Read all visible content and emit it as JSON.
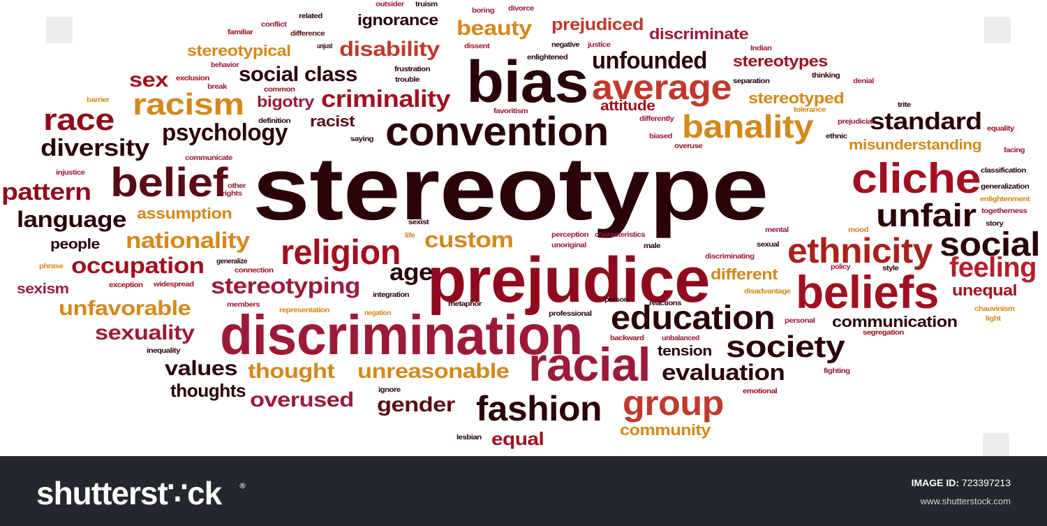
{
  "words": [
    {
      "text": "stereotype",
      "color": "#2a0208"
    },
    {
      "text": "prejudice",
      "color": "#8f0a1c"
    },
    {
      "text": "discrimination",
      "color": "#9c1a38"
    },
    {
      "text": "bias",
      "color": "#2a0208"
    },
    {
      "text": "convention",
      "color": "#2a0208"
    },
    {
      "text": "belief",
      "color": "#5a0c16"
    },
    {
      "text": "cliche",
      "color": "#a01020"
    },
    {
      "text": "beliefs",
      "color": "#a01020"
    },
    {
      "text": "racial",
      "color": "#9c1a38"
    },
    {
      "text": "education",
      "color": "#2a0208"
    },
    {
      "text": "religion",
      "color": "#a01020"
    },
    {
      "text": "ethnicity",
      "color": "#a8221c"
    },
    {
      "text": "social",
      "color": "#2a0208"
    },
    {
      "text": "average",
      "color": "#c0392b"
    },
    {
      "text": "banality",
      "color": "#d4881a"
    },
    {
      "text": "unfair",
      "color": "#2a0208"
    },
    {
      "text": "racism",
      "color": "#d4881a"
    },
    {
      "text": "race",
      "color": "#8f0a1c"
    },
    {
      "text": "society",
      "color": "#2a0208"
    },
    {
      "text": "fashion",
      "color": "#2a0208"
    },
    {
      "text": "group",
      "color": "#c0392b"
    },
    {
      "text": "feeling",
      "color": "#b51e2a"
    },
    {
      "text": "standard",
      "color": "#2a0208"
    },
    {
      "text": "unfounded",
      "color": "#2a0208"
    },
    {
      "text": "criminality",
      "color": "#a01020"
    },
    {
      "text": "psychology",
      "color": "#2a0208"
    },
    {
      "text": "diversity",
      "color": "#2a0208"
    },
    {
      "text": "pattern",
      "color": "#8f0a1c"
    },
    {
      "text": "language",
      "color": "#2a0208"
    },
    {
      "text": "nationality",
      "color": "#d4881a"
    },
    {
      "text": "occupation",
      "color": "#a01020"
    },
    {
      "text": "stereotyping",
      "color": "#9c1a38"
    },
    {
      "text": "unfavorable",
      "color": "#d4881a"
    },
    {
      "text": "sexuality",
      "color": "#9c1a38"
    },
    {
      "text": "values",
      "color": "#2a0208"
    },
    {
      "text": "thought",
      "color": "#d4881a"
    },
    {
      "text": "unreasonable",
      "color": "#d4881a"
    },
    {
      "text": "evaluation",
      "color": "#2a0208"
    },
    {
      "text": "gender",
      "color": "#5a0c16"
    },
    {
      "text": "overused",
      "color": "#9c1a38"
    },
    {
      "text": "thoughts",
      "color": "#2a0208"
    },
    {
      "text": "custom",
      "color": "#d4881a"
    },
    {
      "text": "age",
      "color": "#2a0208"
    },
    {
      "text": "sex",
      "color": "#a01020"
    },
    {
      "text": "social class",
      "color": "#2a0208"
    },
    {
      "text": "disability",
      "color": "#c0392b"
    },
    {
      "text": "beauty",
      "color": "#d4881a"
    },
    {
      "text": "prejudiced",
      "color": "#c0392b"
    },
    {
      "text": "discriminate",
      "color": "#9c1a38"
    },
    {
      "text": "stereotypes",
      "color": "#a01020"
    },
    {
      "text": "stereotypical",
      "color": "#d4881a"
    },
    {
      "text": "ignorance",
      "color": "#2a0208"
    },
    {
      "text": "bigotry",
      "color": "#9c1a38"
    },
    {
      "text": "racist",
      "color": "#5a0c16"
    },
    {
      "text": "attitude",
      "color": "#a01020"
    },
    {
      "text": "stereotyped",
      "color": "#d4881a"
    },
    {
      "text": "misunderstanding",
      "color": "#d4881a"
    },
    {
      "text": "assumption",
      "color": "#d4881a"
    },
    {
      "text": "people",
      "color": "#2a0208"
    },
    {
      "text": "sexism",
      "color": "#9c1a38"
    },
    {
      "text": "different",
      "color": "#d4881a"
    },
    {
      "text": "unequal",
      "color": "#a01020"
    },
    {
      "text": "communication",
      "color": "#2a0208"
    },
    {
      "text": "tension",
      "color": "#2a0208"
    },
    {
      "text": "community",
      "color": "#d4881a"
    },
    {
      "text": "equal",
      "color": "#a01020"
    },
    {
      "text": "outsider",
      "color": "#9c1a38"
    },
    {
      "text": "truism",
      "color": "#2a0208"
    },
    {
      "text": "boring",
      "color": "#9c1a38"
    },
    {
      "text": "divorce",
      "color": "#9c1a38"
    },
    {
      "text": "related",
      "color": "#2a0208"
    },
    {
      "text": "conflict",
      "color": "#9c1a38"
    },
    {
      "text": "familiar",
      "color": "#a01020"
    },
    {
      "text": "difference",
      "color": "#5a0c16"
    },
    {
      "text": "unjust",
      "color": "#2a0208"
    },
    {
      "text": "dissent",
      "color": "#9c1a38"
    },
    {
      "text": "negative",
      "color": "#2a0208"
    },
    {
      "text": "justice",
      "color": "#9c1a38"
    },
    {
      "text": "enlightened",
      "color": "#2a0208"
    },
    {
      "text": "Indian",
      "color": "#9c1a38"
    },
    {
      "text": "behavior",
      "color": "#9c1a38"
    },
    {
      "text": "exclusion",
      "color": "#a01020"
    },
    {
      "text": "frustration",
      "color": "#2a0208"
    },
    {
      "text": "trouble",
      "color": "#2a0208"
    },
    {
      "text": "break",
      "color": "#9c1a38"
    },
    {
      "text": "common",
      "color": "#a01020"
    },
    {
      "text": "separation",
      "color": "#2a0208"
    },
    {
      "text": "thinking",
      "color": "#2a0208"
    },
    {
      "text": "denial",
      "color": "#9c1a38"
    },
    {
      "text": "barrier",
      "color": "#d4881a"
    },
    {
      "text": "favoritism",
      "color": "#9c1a38"
    },
    {
      "text": "tolerance",
      "color": "#d4881a"
    },
    {
      "text": "trite",
      "color": "#2a0208"
    },
    {
      "text": "definition",
      "color": "#2a0208"
    },
    {
      "text": "differently",
      "color": "#9c1a38"
    },
    {
      "text": "prejudicial",
      "color": "#9c1a38"
    },
    {
      "text": "equality",
      "color": "#a01020"
    },
    {
      "text": "saying",
      "color": "#2a0208"
    },
    {
      "text": "biased",
      "color": "#9c1a38"
    },
    {
      "text": "overuse",
      "color": "#a01020"
    },
    {
      "text": "ethnic",
      "color": "#2a0208"
    },
    {
      "text": "facing",
      "color": "#9c1a38"
    },
    {
      "text": "communicate",
      "color": "#9c1a38"
    },
    {
      "text": "injustice",
      "color": "#9c1a38"
    },
    {
      "text": "other",
      "color": "#9c1a38"
    },
    {
      "text": "rights",
      "color": "#9c1a38"
    },
    {
      "text": "ideas",
      "color": "#2a0208"
    },
    {
      "text": "classification",
      "color": "#2a0208"
    },
    {
      "text": "generalization",
      "color": "#2a0208"
    },
    {
      "text": "enlightenment",
      "color": "#d4881a"
    },
    {
      "text": "togetherness",
      "color": "#9c1a38"
    },
    {
      "text": "story",
      "color": "#2a0208"
    },
    {
      "text": "sexist",
      "color": "#2a0208"
    },
    {
      "text": "life",
      "color": "#d4881a"
    },
    {
      "text": "perception",
      "color": "#9c1a38"
    },
    {
      "text": "characteristics",
      "color": "#9c1a38"
    },
    {
      "text": "unoriginal",
      "color": "#9c1a38"
    },
    {
      "text": "male",
      "color": "#2a0208"
    },
    {
      "text": "mental",
      "color": "#9c1a38"
    },
    {
      "text": "mood",
      "color": "#d4881a"
    },
    {
      "text": "sexual",
      "color": "#2a0208"
    },
    {
      "text": "discriminating",
      "color": "#9c1a38"
    },
    {
      "text": "phrase",
      "color": "#d4881a"
    },
    {
      "text": "generalize",
      "color": "#2a0208"
    },
    {
      "text": "connection",
      "color": "#a01020"
    },
    {
      "text": "exception",
      "color": "#a01020"
    },
    {
      "text": "widespread",
      "color": "#a01020"
    },
    {
      "text": "integration",
      "color": "#2a0208"
    },
    {
      "text": "policy",
      "color": "#9c1a38"
    },
    {
      "text": "style",
      "color": "#2a0208"
    },
    {
      "text": "disadvantage",
      "color": "#d4881a"
    },
    {
      "text": "members",
      "color": "#9c1a38"
    },
    {
      "text": "representation",
      "color": "#d4881a"
    },
    {
      "text": "negation",
      "color": "#d4881a"
    },
    {
      "text": "metaphor",
      "color": "#2a0208"
    },
    {
      "text": "person",
      "color": "#2a0208"
    },
    {
      "text": "reactions",
      "color": "#2a0208"
    },
    {
      "text": "chauvinism",
      "color": "#d4881a"
    },
    {
      "text": "professional",
      "color": "#2a0208"
    },
    {
      "text": "personal",
      "color": "#9c1a38"
    },
    {
      "text": "light",
      "color": "#d4881a"
    },
    {
      "text": "inequality",
      "color": "#2a0208"
    },
    {
      "text": "backward",
      "color": "#a01020"
    },
    {
      "text": "unbalanced",
      "color": "#9c1a38"
    },
    {
      "text": "segregation",
      "color": "#a01020"
    },
    {
      "text": "fighting",
      "color": "#9c1a38"
    },
    {
      "text": "ignore",
      "color": "#2a0208"
    },
    {
      "text": "emotional",
      "color": "#a01020"
    },
    {
      "text": "lesbian",
      "color": "#2a0208"
    }
  ],
  "footer": {
    "brand": "shutterst∵ck",
    "registered": "®",
    "image_id_label": "IMAGE ID:",
    "image_id_value": "723397213",
    "site": "www.shutterstock.com",
    "background": "#24272d"
  }
}
